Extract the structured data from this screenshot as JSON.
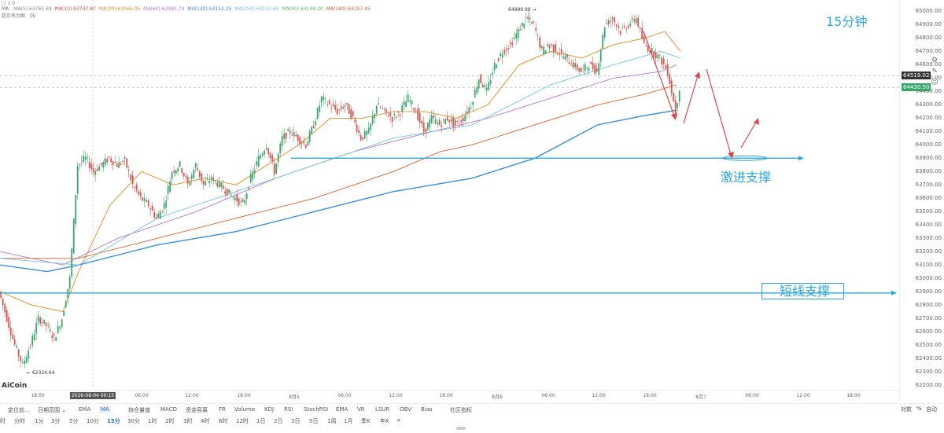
{
  "timeframe_title": "15分钟",
  "legend": {
    "row1": "▢ 1 0",
    "row2_prefix": "MA",
    "ma_items": [
      {
        "label": "MA(5):63765.69",
        "color": "#888888"
      },
      {
        "label": "MA(10):63747.87",
        "color": "#c94a4a"
      },
      {
        "label": "MA(30):63065.05",
        "color": "#e08a1e"
      },
      {
        "label": "MA(60):62981.74",
        "color": "#b27ac9"
      },
      {
        "label": "MA(120):63152.25",
        "color": "#3a8ee0"
      },
      {
        "label": "MA(250):63110.65",
        "color": "#6fc3e6"
      },
      {
        "label": "MA(90):63149.20",
        "color": "#55b86a"
      },
      {
        "label": "MA(180):63157.45",
        "color": "#d9622b"
      }
    ],
    "row3": "超买热力图",
    "row3_value": "0k"
  },
  "annotations": {
    "aggressive_support": "激进支撑",
    "short_support": "短线支撑",
    "high_label": "64999.99 →",
    "low_label": "← 62324.64"
  },
  "price_tags": [
    {
      "value": "64519.02",
      "color": "#333333"
    },
    {
      "value": "64430.50",
      "color": "#3aa56b"
    }
  ],
  "watermark": "AiCoin",
  "x_axis": {
    "labels": [
      "18:00",
      "2026-08-04 00:15",
      "06:00",
      "12:00",
      "18:00",
      "8月5",
      "06:00",
      "12:00",
      "18:00",
      "8月6",
      "06:00",
      "12:00",
      "18:00",
      "8月7",
      "06:00",
      "12:00",
      "18:00"
    ]
  },
  "toolbar": {
    "items": [
      "定位前...",
      "日期范围 ⌄",
      "EMA",
      "MA",
      "持仓量值",
      "MACD",
      "资金容离",
      "FR",
      "Volume",
      "KDJ",
      "RSI",
      "StochRSI",
      "EMA",
      "VR",
      "LSUR",
      "OBV",
      "Bias",
      "社区指标"
    ],
    "active_index": 3
  },
  "timeframes": {
    "items": [
      "时",
      "分时",
      "1分",
      "3分",
      "5分",
      "10分",
      "15分",
      "30分",
      "1时",
      "2时",
      "3时",
      "4时",
      "6时",
      "12时",
      "1日",
      "2日",
      "3日",
      "5日",
      "1周",
      "1月",
      "季K",
      "年K",
      "×"
    ],
    "active_index": 6
  },
  "right_panel": {
    "items": [
      "对数",
      "%",
      "自动"
    ]
  },
  "chart_data": {
    "type": "line",
    "title": "",
    "ylim": [
      62200,
      65050
    ],
    "y_ticks": [
      62200,
      62300,
      62400,
      62500,
      62600,
      62700,
      62800,
      62900,
      63000,
      63100,
      63200,
      63300,
      63400,
      63500,
      63600,
      63700,
      63800,
      63900,
      64000,
      64100,
      64200,
      64300,
      64400,
      64500,
      64600,
      64700,
      64800,
      64900,
      65000
    ],
    "candles_summary": {
      "high": 64999.99,
      "low": 62324.64,
      "last": 64430.5
    },
    "price_path": [
      [
        0,
        62900
      ],
      [
        10,
        62700
      ],
      [
        20,
        62500
      ],
      [
        30,
        62350
      ],
      [
        40,
        62500
      ],
      [
        50,
        62700
      ],
      [
        60,
        62650
      ],
      [
        70,
        62550
      ],
      [
        80,
        62700
      ],
      [
        90,
        63000
      ],
      [
        100,
        63850
      ],
      [
        110,
        63900
      ],
      [
        120,
        63800
      ],
      [
        130,
        63850
      ],
      [
        140,
        63900
      ],
      [
        150,
        63850
      ],
      [
        160,
        63880
      ],
      [
        170,
        63700
      ],
      [
        180,
        63600
      ],
      [
        190,
        63550
      ],
      [
        200,
        63450
      ],
      [
        210,
        63550
      ],
      [
        220,
        63800
      ],
      [
        230,
        63850
      ],
      [
        240,
        63700
      ],
      [
        250,
        63850
      ],
      [
        260,
        63700
      ],
      [
        270,
        63750
      ],
      [
        280,
        63700
      ],
      [
        290,
        63650
      ],
      [
        300,
        63600
      ],
      [
        310,
        63550
      ],
      [
        320,
        63750
      ],
      [
        330,
        63900
      ],
      [
        340,
        64000
      ],
      [
        350,
        63800
      ],
      [
        360,
        64050
      ],
      [
        370,
        64100
      ],
      [
        380,
        64050
      ],
      [
        390,
        64000
      ],
      [
        400,
        64150
      ],
      [
        410,
        64350
      ],
      [
        420,
        64300
      ],
      [
        430,
        64250
      ],
      [
        440,
        64300
      ],
      [
        450,
        64200
      ],
      [
        460,
        64050
      ],
      [
        470,
        64100
      ],
      [
        480,
        64300
      ],
      [
        490,
        64250
      ],
      [
        500,
        64200
      ],
      [
        510,
        64250
      ],
      [
        520,
        64350
      ],
      [
        530,
        64250
      ],
      [
        540,
        64100
      ],
      [
        550,
        64200
      ],
      [
        560,
        64150
      ],
      [
        570,
        64200
      ],
      [
        580,
        64150
      ],
      [
        590,
        64200
      ],
      [
        600,
        64300
      ],
      [
        610,
        64500
      ],
      [
        620,
        64400
      ],
      [
        630,
        64600
      ],
      [
        640,
        64700
      ],
      [
        650,
        64750
      ],
      [
        660,
        64850
      ],
      [
        670,
        64950
      ],
      [
        680,
        64900
      ],
      [
        690,
        64700
      ],
      [
        700,
        64750
      ],
      [
        710,
        64700
      ],
      [
        720,
        64650
      ],
      [
        730,
        64600
      ],
      [
        740,
        64550
      ],
      [
        750,
        64600
      ],
      [
        760,
        64550
      ],
      [
        770,
        64900
      ],
      [
        780,
        64950
      ],
      [
        790,
        64850
      ],
      [
        800,
        64900
      ],
      [
        810,
        64950
      ],
      [
        820,
        64750
      ],
      [
        830,
        64700
      ],
      [
        840,
        64650
      ],
      [
        850,
        64550
      ],
      [
        860,
        64250
      ],
      [
        865,
        64430
      ]
    ],
    "series": [
      {
        "name": "MA(30)",
        "color": "#e08a1e",
        "points": [
          [
            0,
            62900
          ],
          [
            40,
            62800
          ],
          [
            80,
            62750
          ],
          [
            100,
            63050
          ],
          [
            140,
            63550
          ],
          [
            180,
            63800
          ],
          [
            220,
            63700
          ],
          [
            260,
            63750
          ],
          [
            300,
            63700
          ],
          [
            340,
            63850
          ],
          [
            380,
            64000
          ],
          [
            420,
            64200
          ],
          [
            460,
            64200
          ],
          [
            500,
            64250
          ],
          [
            540,
            64250
          ],
          [
            580,
            64200
          ],
          [
            620,
            64300
          ],
          [
            660,
            64600
          ],
          [
            700,
            64700
          ],
          [
            740,
            64650
          ],
          [
            780,
            64750
          ],
          [
            820,
            64800
          ],
          [
            845,
            64850
          ],
          [
            865,
            64700
          ]
        ]
      },
      {
        "name": "MA(120)",
        "color": "#3a8ee0",
        "points": [
          [
            0,
            63100
          ],
          [
            60,
            63050
          ],
          [
            100,
            63100
          ],
          [
            200,
            63250
          ],
          [
            300,
            63350
          ],
          [
            400,
            63500
          ],
          [
            500,
            63650
          ],
          [
            600,
            63750
          ],
          [
            680,
            63900
          ],
          [
            760,
            64150
          ],
          [
            820,
            64220
          ],
          [
            860,
            64260
          ]
        ]
      },
      {
        "name": "MA(180)",
        "color": "#d9622b",
        "points": [
          [
            0,
            63150
          ],
          [
            100,
            63150
          ],
          [
            200,
            63300
          ],
          [
            300,
            63450
          ],
          [
            400,
            63600
          ],
          [
            500,
            63800
          ],
          [
            560,
            63950
          ],
          [
            600,
            64000
          ],
          [
            680,
            64150
          ],
          [
            760,
            64300
          ],
          [
            820,
            64380
          ],
          [
            860,
            64450
          ]
        ]
      },
      {
        "name": "MA(60)",
        "color": "#b27ac9",
        "points": [
          [
            0,
            63200
          ],
          [
            80,
            63100
          ],
          [
            150,
            63300
          ],
          [
            250,
            63500
          ],
          [
            350,
            63750
          ],
          [
            450,
            63950
          ],
          [
            550,
            64100
          ],
          [
            620,
            64200
          ],
          [
            700,
            64350
          ],
          [
            780,
            64500
          ],
          [
            840,
            64550
          ],
          [
            860,
            64600
          ]
        ]
      },
      {
        "name": "MA(250)",
        "color": "#6fc3e6",
        "points": [
          [
            0,
            63150
          ],
          [
            100,
            63100
          ],
          [
            200,
            63450
          ],
          [
            300,
            63650
          ],
          [
            400,
            63850
          ],
          [
            500,
            64050
          ],
          [
            600,
            64150
          ],
          [
            700,
            64450
          ],
          [
            780,
            64600
          ],
          [
            840,
            64700
          ],
          [
            865,
            64650
          ]
        ]
      }
    ],
    "support_levels": [
      {
        "label": "激进支撑",
        "value": 63900
      },
      {
        "label": "短线支撑",
        "value": 62890
      }
    ],
    "dashed_levels": [
      64519.02,
      64430.5
    ]
  }
}
